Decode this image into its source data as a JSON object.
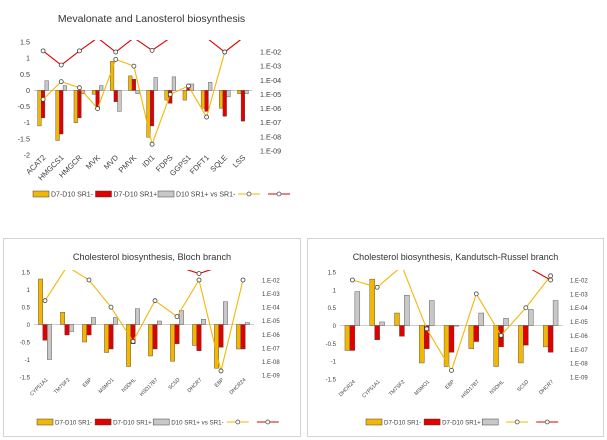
{
  "chart_data": [
    {
      "type": "bar",
      "title": "Mevalonate and Lanosterol biosynthesis",
      "categories": [
        "ACAT2",
        "HMGCS1",
        "HMGCR",
        "MVK",
        "MVD",
        "PMVK",
        "IDI1",
        "FDPS",
        "GGPS1",
        "FDFT1",
        "SQLE",
        "LSS"
      ],
      "ylim_left": [
        -2,
        1.5
      ],
      "yticks_left": [
        "1.5",
        "1",
        "0.5",
        "0",
        "-0.5",
        "-1",
        "-1.5",
        "-2"
      ],
      "yticks_right": [
        "1.E-02",
        "1.E-03",
        "1.E-04",
        "1.E-05",
        "1.E-06",
        "1.E-07",
        "1.E-08",
        "1.E-09"
      ],
      "log_right": true,
      "series": [
        {
          "name": "D7-D10 SR1-",
          "color": "#f2b705",
          "values": [
            -1.1,
            -1.55,
            -1.0,
            -0.12,
            0.9,
            0.45,
            -1.45,
            -0.3,
            -0.3,
            -0.55,
            -0.55,
            -0.1
          ]
        },
        {
          "name": "D7-D10 SR1+",
          "color": "#e00000",
          "values": [
            -0.85,
            -1.35,
            -0.85,
            -0.6,
            -0.35,
            0.35,
            -1.1,
            -0.4,
            0.12,
            -0.65,
            -0.8,
            -0.95
          ]
        },
        {
          "name": "D10 SR1+ vs SR1-",
          "color": "#c8c8c8",
          "values": [
            0.3,
            0.15,
            -0.1,
            0.15,
            -0.65,
            -0.1,
            0.4,
            0.42,
            0.2,
            0.25,
            -0.2,
            -0.1
          ]
        },
        {
          "name": "",
          "color": "#f2b705",
          "marker": true,
          "values": [
            4.5e-06,
            8e-05,
            3e-05,
            1e-06,
            0.003,
            0.001,
            3e-09,
            1e-05,
            4e-05,
            2.5e-07,
            0.01,
            0.1
          ]
        },
        {
          "name": "",
          "color": "#e00000",
          "marker": true,
          "values": [
            0.012,
            0.0012,
            0.012,
            0.1,
            0.01,
            0.1,
            0.013,
            0.1,
            0.1,
            0.1,
            0.01,
            0.1
          ]
        }
      ],
      "legend": [
        "D7-D10 SR1-",
        "D7-D10 SR1+",
        "D10 SR1+ vs SR1-"
      ],
      "legend_position": "bottom"
    },
    {
      "type": "bar",
      "title": "Cholesterol biosynthesis, Bloch branch",
      "categories": [
        "CYP51A1",
        "TM7SF2",
        "EBP",
        "MSMO1",
        "NSDHL",
        "HSD17B7",
        "SC5D",
        "DHCR7",
        "EBP",
        "DHCR24"
      ],
      "ylim_left": [
        -1.5,
        1.5
      ],
      "yticks_left": [
        "1.5",
        "1",
        "0.5",
        "0",
        "-0.5",
        "-1",
        "-1.5"
      ],
      "yticks_right": [
        "1.E-02",
        "1.E-03",
        "1.E-04",
        "1.E-05",
        "1.E-06",
        "1.E-07",
        "1.E-08",
        "1.E-09"
      ],
      "log_right": true,
      "series": [
        {
          "name": "D7-D10 SR1-",
          "color": "#f2b705",
          "values": [
            1.3,
            0.35,
            -0.5,
            -0.8,
            -1.2,
            -0.9,
            -1.05,
            -0.6,
            -1.25,
            -0.7
          ]
        },
        {
          "name": "D7-D10 SR1+",
          "color": "#e00000",
          "values": [
            -0.45,
            -0.3,
            -0.3,
            -0.7,
            -0.55,
            -0.7,
            -0.55,
            -0.75,
            -0.65,
            -0.7
          ]
        },
        {
          "name": "D10 SR1+ vs SR1-",
          "color": "#c8c8c8",
          "values": [
            -1.0,
            -0.2,
            0.2,
            0.2,
            0.45,
            0.1,
            0.4,
            0.15,
            0.65,
            0.05
          ]
        },
        {
          "name": "",
          "color": "#f2b705",
          "marker": true,
          "values": [
            0.0003,
            0.1,
            0.01,
            0.0001,
            3e-07,
            0.0003,
            2e-05,
            0.01,
            2e-09,
            0.01
          ]
        },
        {
          "name": "",
          "color": "#e00000",
          "marker": true,
          "values": [
            0.1,
            0.1,
            0.1,
            0.1,
            0.1,
            0.1,
            0.1,
            0.03,
            0.1,
            0.1
          ]
        }
      ],
      "legend": [
        "D7-D10 SR1-",
        "D7-D10 SR1+",
        "D10 SR1+ vs SR1-"
      ],
      "legend_position": "bottom"
    },
    {
      "type": "bar",
      "title": "Cholesterol biosynthesis, Kandutsch-Russel branch",
      "categories": [
        "DHCR24",
        "CYP51A1",
        "TM7SF2",
        "MSMO1",
        "EBP",
        "HSD17B7",
        "NSDHL",
        "SC5D",
        "DHCR7"
      ],
      "ylim_left": [
        -1.5,
        1.5
      ],
      "yticks_left": [
        "1.5",
        "1",
        "0.5",
        "0",
        "-0.5",
        "-1",
        "-1.5"
      ],
      "yticks_right": [
        "1.E-02",
        "1.E-03",
        "1.E-04",
        "1.E-05",
        "1.E-06",
        "1.E-07",
        "1.E-08",
        "1.E-09"
      ],
      "log_right": true,
      "series": [
        {
          "name": "D7-D10 SR1-",
          "color": "#f2b705",
          "values": [
            -0.7,
            1.3,
            0.35,
            -1.05,
            -1.15,
            -0.65,
            -1.15,
            -1.05,
            -0.6
          ]
        },
        {
          "name": "D7-D10 SR1+",
          "color": "#e00000",
          "values": [
            -0.7,
            -0.4,
            -0.3,
            -0.65,
            -0.75,
            -0.45,
            -0.6,
            -0.55,
            -0.75
          ]
        },
        {
          "name": "D10 SR1+ vs SR1-",
          "color": "#c8c8c8",
          "values": [
            0.95,
            0.1,
            0.85,
            0.7,
            0.0,
            0.35,
            0.2,
            0.45,
            0.7
          ]
        },
        {
          "name": "",
          "color": "#f2b705",
          "marker": true,
          "values": [
            0.01,
            0.003,
            0.1,
            3e-06,
            3e-09,
            0.001,
            1e-06,
            0.0001,
            0.02
          ]
        },
        {
          "name": "",
          "color": "#e00000",
          "marker": true,
          "values": [
            0.1,
            0.1,
            0.1,
            0.1,
            0.1,
            0.1,
            0.1,
            0.1,
            0.01
          ]
        }
      ],
      "legend": [
        "D7-D10 SR1-",
        "D7-D10 SR1+",
        "",
        ""
      ],
      "legend_position": "bottom"
    }
  ]
}
